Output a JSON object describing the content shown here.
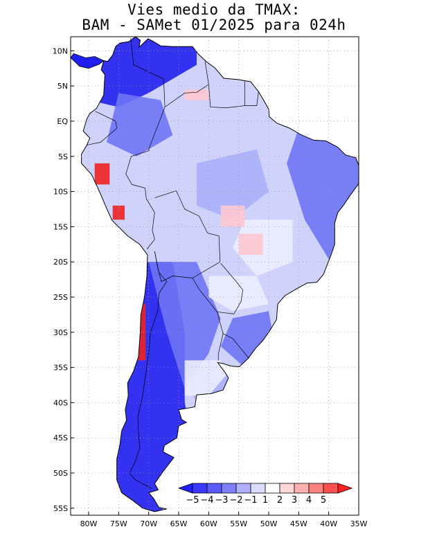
{
  "title": {
    "line1": "Vies medio da TMAX:",
    "line2": "BAM - SAMet 01/2025  para 024h"
  },
  "map": {
    "lon_range": [
      -83,
      -35
    ],
    "lat_range": [
      -56,
      12
    ],
    "lat_ticks": [
      {
        "lat": 10,
        "label": "10N"
      },
      {
        "lat": 5,
        "label": "5N"
      },
      {
        "lat": 0,
        "label": "EQ"
      },
      {
        "lat": -5,
        "label": "5S"
      },
      {
        "lat": -10,
        "label": "10S"
      },
      {
        "lat": -15,
        "label": "15S"
      },
      {
        "lat": -20,
        "label": "20S"
      },
      {
        "lat": -25,
        "label": "25S"
      },
      {
        "lat": -30,
        "label": "30S"
      },
      {
        "lat": -35,
        "label": "35S"
      },
      {
        "lat": -40,
        "label": "40S"
      },
      {
        "lat": -45,
        "label": "45S"
      },
      {
        "lat": -50,
        "label": "50S"
      },
      {
        "lat": -55,
        "label": "55S"
      }
    ],
    "lon_ticks": [
      {
        "lon": -80,
        "label": "80W"
      },
      {
        "lon": -75,
        "label": "75W"
      },
      {
        "lon": -70,
        "label": "70W"
      },
      {
        "lon": -65,
        "label": "65W"
      },
      {
        "lon": -60,
        "label": "60W"
      },
      {
        "lon": -55,
        "label": "55W"
      },
      {
        "lon": -50,
        "label": "50W"
      },
      {
        "lon": -45,
        "label": "45W"
      },
      {
        "lon": -40,
        "label": "40W"
      },
      {
        "lon": -35,
        "label": "35W"
      }
    ],
    "colorbar": {
      "labels": [
        "-5",
        "-4",
        "-3",
        "-2",
        "-1",
        "1",
        "2",
        "3",
        "4",
        "5"
      ],
      "colors": [
        "#1f1fff",
        "#3a3aff",
        "#5a5aff",
        "#8080ff",
        "#b0b0ff",
        "#dcdcff",
        "#ffffff",
        "#ffd6d6",
        "#ffb0b0",
        "#ff8080",
        "#ff5050",
        "#ff2020"
      ]
    },
    "colors": {
      "land_base": "#cfd3fb",
      "strong_negative": "#2020ee",
      "moderate_negative": "#6d74f5",
      "weak_negative": "#a8b0fa",
      "near_zero": "#ebedff",
      "warm": "#ffc8d0",
      "hot": "#ee2222",
      "border": "#000000"
    }
  }
}
